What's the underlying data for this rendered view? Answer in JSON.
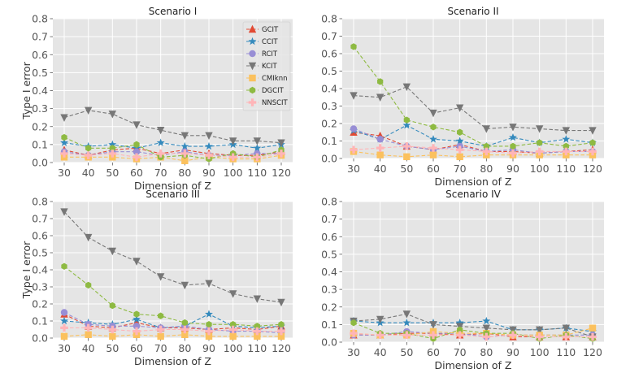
{
  "figure": {
    "ylabel": "Type I error",
    "xlabel": "Dimension of Z"
  },
  "colors": {
    "GCIT": "#e24a33",
    "CCIT": "#348abd",
    "RCIT": "#988ed5",
    "KCIT": "#777777",
    "CMIknn": "#fbc15e",
    "DGCIT": "#8eba42",
    "NNSCIT": "#ffb5b8"
  },
  "legend": [
    "GCIT",
    "CCIT",
    "RCIT",
    "KCIT",
    "CMIknn",
    "DGCIT",
    "NNSCIT"
  ],
  "chart_data": [
    {
      "type": "line",
      "title": "Scenario I",
      "xlabel": "Dimension of Z",
      "ylabel": "Type I error",
      "categories": [
        30,
        40,
        50,
        60,
        70,
        80,
        90,
        100,
        110,
        120
      ],
      "yticks": [
        0.0,
        0.1,
        0.2,
        0.3,
        0.4,
        0.5,
        0.6,
        0.7,
        0.8
      ],
      "ylim": [
        0,
        0.8
      ],
      "legend_position": "top-right",
      "series": [
        {
          "name": "GCIT",
          "values": [
            0.07,
            0.04,
            0.07,
            0.08,
            0.05,
            0.07,
            0.05,
            0.04,
            0.04,
            0.06
          ]
        },
        {
          "name": "CCIT",
          "values": [
            0.11,
            0.09,
            0.1,
            0.08,
            0.11,
            0.09,
            0.09,
            0.1,
            0.08,
            0.1
          ]
        },
        {
          "name": "RCIT",
          "values": [
            0.06,
            0.04,
            0.06,
            0.06,
            0.04,
            0.06,
            0.04,
            0.04,
            0.05,
            0.05
          ]
        },
        {
          "name": "KCIT",
          "values": [
            0.25,
            0.29,
            0.27,
            0.21,
            0.18,
            0.15,
            0.15,
            0.12,
            0.12,
            0.11
          ]
        },
        {
          "name": "CMIknn",
          "values": [
            0.03,
            0.03,
            0.03,
            0.02,
            0.03,
            0.01,
            0.03,
            0.02,
            0.02,
            0.04
          ]
        },
        {
          "name": "DGCIT",
          "values": [
            0.14,
            0.08,
            0.08,
            0.1,
            0.03,
            0.04,
            0.02,
            0.05,
            0.03,
            0.07
          ]
        },
        {
          "name": "NNSCIT",
          "values": [
            0.05,
            0.04,
            0.05,
            0.03,
            0.05,
            0.05,
            0.04,
            0.03,
            0.03,
            0.05
          ]
        }
      ]
    },
    {
      "type": "line",
      "title": "Scenario II",
      "xlabel": "Dimension of Z",
      "ylabel": "",
      "categories": [
        30,
        40,
        50,
        60,
        70,
        80,
        90,
        100,
        110,
        120
      ],
      "yticks": [
        0.0,
        0.1,
        0.2,
        0.3,
        0.4,
        0.5,
        0.6,
        0.7,
        0.8
      ],
      "ylim": [
        0,
        0.8
      ],
      "series": [
        {
          "name": "GCIT",
          "values": [
            0.15,
            0.13,
            0.07,
            0.05,
            0.08,
            0.04,
            0.04,
            0.03,
            0.04,
            0.05
          ]
        },
        {
          "name": "CCIT",
          "values": [
            0.16,
            0.11,
            0.19,
            0.11,
            0.1,
            0.07,
            0.12,
            0.09,
            0.11,
            0.09
          ]
        },
        {
          "name": "RCIT",
          "values": [
            0.17,
            0.11,
            0.07,
            0.05,
            0.07,
            0.04,
            0.05,
            0.03,
            0.04,
            0.04
          ]
        },
        {
          "name": "KCIT",
          "values": [
            0.36,
            0.35,
            0.41,
            0.26,
            0.29,
            0.17,
            0.18,
            0.17,
            0.16,
            0.16
          ]
        },
        {
          "name": "CMIknn",
          "values": [
            0.04,
            0.02,
            0.01,
            0.02,
            0.01,
            0.02,
            0.02,
            0.02,
            0.02,
            0.02
          ]
        },
        {
          "name": "DGCIT",
          "values": [
            0.64,
            0.44,
            0.22,
            0.18,
            0.15,
            0.07,
            0.07,
            0.09,
            0.07,
            0.09
          ]
        },
        {
          "name": "NNSCIT",
          "values": [
            0.05,
            0.06,
            0.07,
            0.06,
            0.05,
            0.04,
            0.03,
            0.04,
            0.04,
            0.04
          ]
        }
      ]
    },
    {
      "type": "line",
      "title": "Scenario III",
      "xlabel": "Dimension of Z",
      "ylabel": "Type I error",
      "categories": [
        30,
        40,
        50,
        60,
        70,
        80,
        90,
        100,
        110,
        120
      ],
      "yticks": [
        0.0,
        0.1,
        0.2,
        0.3,
        0.4,
        0.5,
        0.6,
        0.7,
        0.8
      ],
      "ylim": [
        0,
        0.8
      ],
      "series": [
        {
          "name": "GCIT",
          "values": [
            0.14,
            0.07,
            0.06,
            0.09,
            0.06,
            0.06,
            0.05,
            0.06,
            0.05,
            0.07
          ]
        },
        {
          "name": "CCIT",
          "values": [
            0.1,
            0.09,
            0.08,
            0.11,
            0.06,
            0.07,
            0.14,
            0.07,
            0.06,
            0.07
          ]
        },
        {
          "name": "RCIT",
          "values": [
            0.15,
            0.08,
            0.07,
            0.07,
            0.06,
            0.07,
            0.05,
            0.04,
            0.04,
            0.03
          ]
        },
        {
          "name": "KCIT",
          "values": [
            0.74,
            0.59,
            0.51,
            0.45,
            0.36,
            0.31,
            0.32,
            0.26,
            0.23,
            0.21
          ]
        },
        {
          "name": "CMIknn",
          "values": [
            0.01,
            0.02,
            0.01,
            0.02,
            0.01,
            0.02,
            0.01,
            0.01,
            0.01,
            0.01
          ]
        },
        {
          "name": "DGCIT",
          "values": [
            0.42,
            0.31,
            0.19,
            0.14,
            0.13,
            0.09,
            0.08,
            0.08,
            0.07,
            0.08
          ]
        },
        {
          "name": "NNSCIT",
          "values": [
            0.06,
            0.06,
            0.05,
            0.04,
            0.05,
            0.05,
            0.04,
            0.05,
            0.04,
            0.04
          ]
        }
      ]
    },
    {
      "type": "line",
      "title": "Scenario IV",
      "xlabel": "Dimension of Z",
      "ylabel": "",
      "categories": [
        30,
        40,
        50,
        60,
        70,
        80,
        90,
        100,
        110,
        120
      ],
      "yticks": [
        0.0,
        0.1,
        0.2,
        0.3,
        0.4,
        0.5,
        0.6,
        0.7,
        0.8
      ],
      "ylim": [
        0,
        0.8
      ],
      "series": [
        {
          "name": "GCIT",
          "values": [
            0.04,
            0.04,
            0.05,
            0.05,
            0.04,
            0.05,
            0.03,
            0.03,
            0.03,
            0.03
          ]
        },
        {
          "name": "CCIT",
          "values": [
            0.12,
            0.11,
            0.11,
            0.11,
            0.11,
            0.12,
            0.07,
            0.07,
            0.08,
            0.06
          ]
        },
        {
          "name": "RCIT",
          "values": [
            0.04,
            0.04,
            0.06,
            0.05,
            0.05,
            0.03,
            0.04,
            0.04,
            0.04,
            0.04
          ]
        },
        {
          "name": "KCIT",
          "values": [
            0.12,
            0.13,
            0.16,
            0.1,
            0.09,
            0.08,
            0.07,
            0.07,
            0.08,
            0.03
          ]
        },
        {
          "name": "CMIknn",
          "values": [
            0.05,
            0.04,
            0.04,
            0.06,
            0.05,
            0.05,
            0.04,
            0.04,
            0.04,
            0.08
          ]
        },
        {
          "name": "DGCIT",
          "values": [
            0.11,
            0.05,
            0.05,
            0.02,
            0.07,
            0.05,
            0.05,
            0.02,
            0.04,
            0.02
          ]
        },
        {
          "name": "NNSCIT",
          "values": [
            0.05,
            0.04,
            0.04,
            0.04,
            0.04,
            0.03,
            0.04,
            0.03,
            0.03,
            0.03
          ]
        }
      ]
    }
  ]
}
